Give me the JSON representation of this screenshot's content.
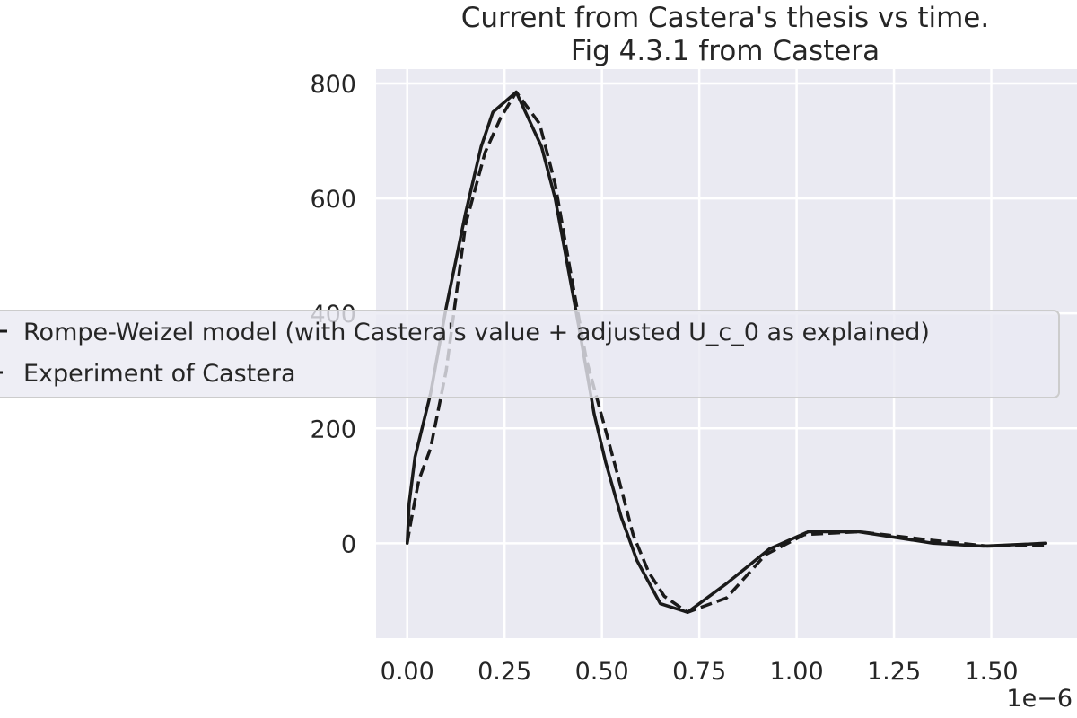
{
  "chart_data": {
    "type": "line",
    "title": [
      "Current from Castera's thesis vs time.",
      "Fig 4.3.1 from Castera"
    ],
    "xlabel": "",
    "ylabel": "",
    "x_offset_label": "1e−6",
    "xlim": [
      -0.08,
      1.72
    ],
    "ylim": [
      -165,
      825
    ],
    "x_ticks": [
      0.0,
      0.25,
      0.5,
      0.75,
      1.0,
      1.25,
      1.5
    ],
    "x_tick_labels": [
      "0.00",
      "0.25",
      "0.50",
      "0.75",
      "1.00",
      "1.25",
      "1.50"
    ],
    "y_ticks": [
      0,
      200,
      400,
      600,
      800
    ],
    "y_tick_labels": [
      "0",
      "200",
      "400",
      "600",
      "800"
    ],
    "grid": true,
    "legend_position": "center-left",
    "series": [
      {
        "name": "Rompe-Weizel model (with Castera's value + adjusted U_c_0 as explained)",
        "style": "solid",
        "color": "#1a1a1a",
        "x": [
          0.0,
          0.005,
          0.02,
          0.06,
          0.1,
          0.15,
          0.19,
          0.22,
          0.28,
          0.345,
          0.38,
          0.44,
          0.48,
          0.51,
          0.55,
          0.59,
          0.65,
          0.72,
          0.82,
          0.93,
          1.03,
          1.16,
          1.35,
          1.48,
          1.64
        ],
        "y": [
          0,
          70,
          150,
          260,
          410,
          575,
          690,
          750,
          785,
          690,
          600,
          380,
          225,
          140,
          45,
          -30,
          -105,
          -120,
          -70,
          -10,
          20,
          20,
          0,
          -5,
          0
        ]
      },
      {
        "name": "Experiment of Castera",
        "style": "dashed",
        "color": "#1a1a1a",
        "x": [
          0.0,
          0.01,
          0.03,
          0.06,
          0.1,
          0.15,
          0.2,
          0.24,
          0.28,
          0.34,
          0.38,
          0.42,
          0.46,
          0.5,
          0.54,
          0.58,
          0.62,
          0.66,
          0.72,
          0.82,
          0.92,
          1.02,
          1.16,
          1.35,
          1.49,
          1.64
        ],
        "y": [
          0,
          40,
          110,
          165,
          300,
          555,
          680,
          740,
          785,
          730,
          625,
          470,
          320,
          220,
          120,
          15,
          -50,
          -92,
          -120,
          -95,
          -20,
          15,
          20,
          5,
          -5,
          -3
        ]
      }
    ]
  }
}
